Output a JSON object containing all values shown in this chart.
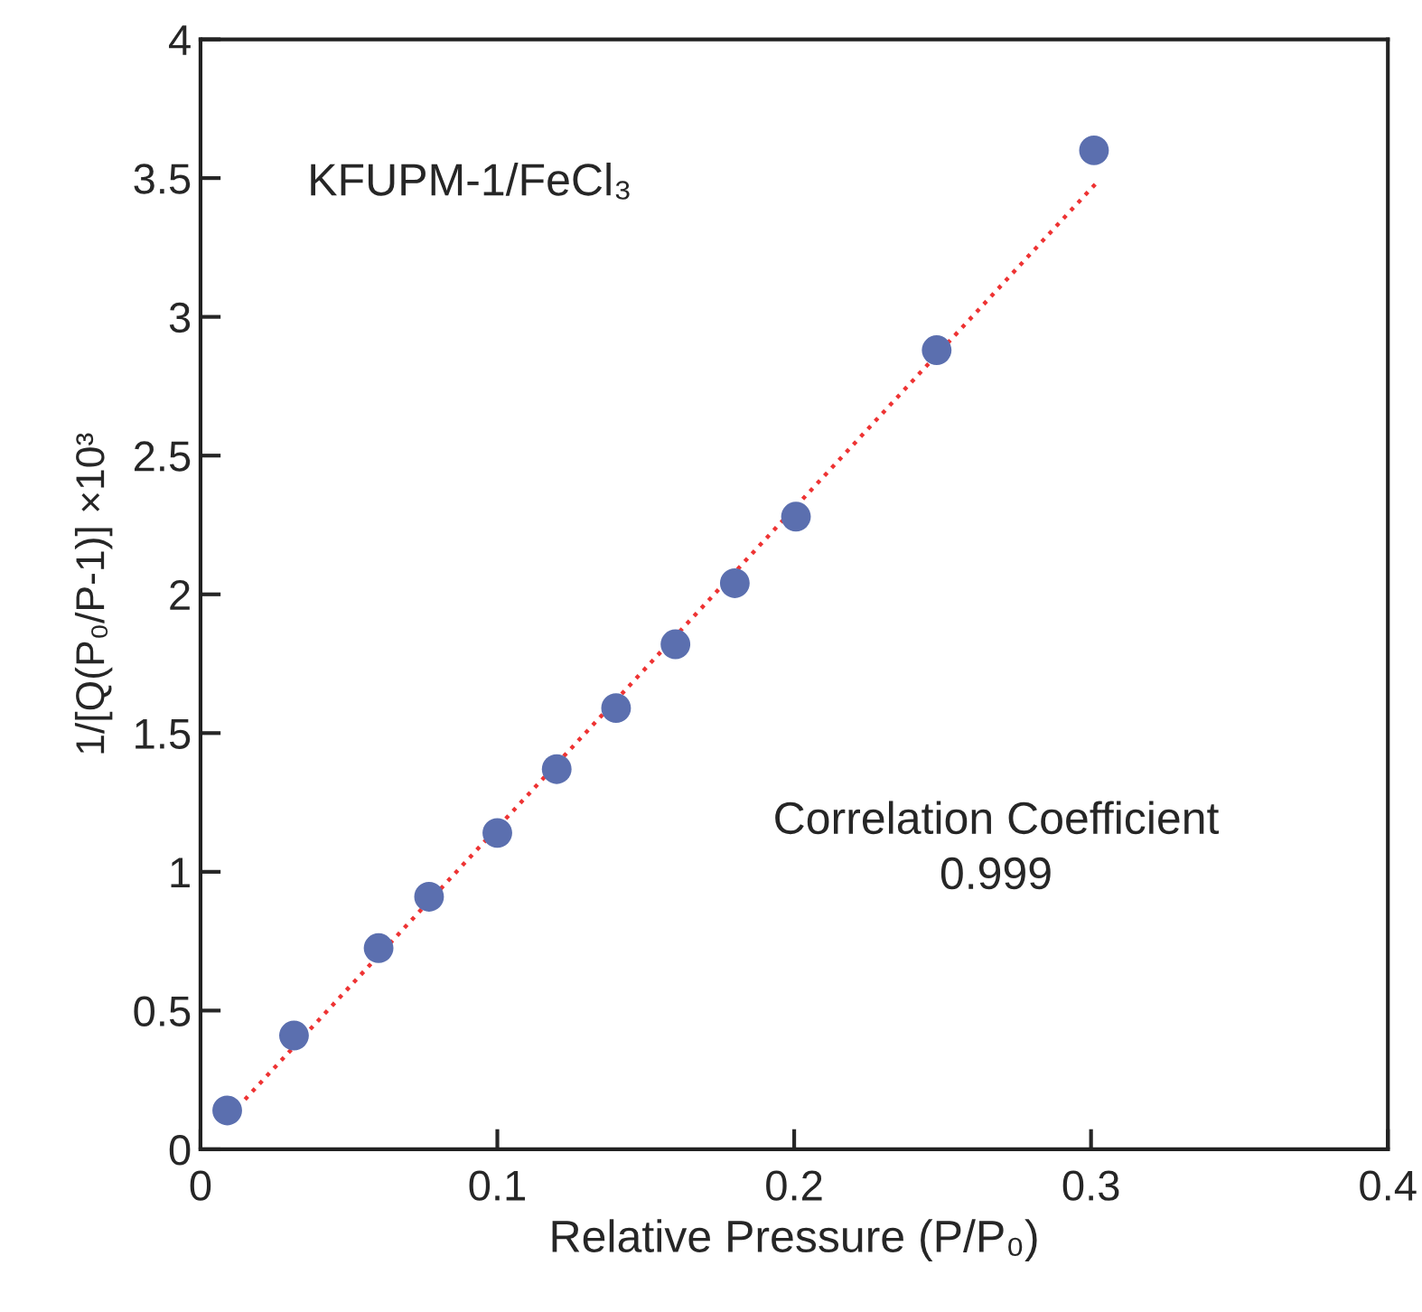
{
  "chart_data": {
    "type": "scatter",
    "xlabel": "Relative Pressure (P/P₀)",
    "ylabel": "1/[Q(P₀/P-1)] ×10³",
    "annotations": [
      "KFUPM-1/FeCl₃",
      "Correlation Coefficient\n0.999"
    ],
    "series": [
      {
        "color": "#5b6faf",
        "marker": "circle",
        "x": [
          0.009,
          0.0315,
          0.06,
          0.077,
          0.1,
          0.12,
          0.14,
          0.16,
          0.18,
          0.2006,
          0.248,
          0.301
        ],
        "values": [
          0.14,
          0.41,
          0.725,
          0.91,
          1.14,
          1.37,
          1.59,
          1.82,
          2.04,
          2.28,
          2.88,
          3.6
        ]
      },
      {
        "type": "line",
        "color": "#ee3333",
        "line_style": "dotted",
        "x": [
          0.015,
          0.3016
        ],
        "values": [
          0.18,
          3.48
        ]
      }
    ],
    "xlim": [
      0,
      0.4
    ],
    "ylim": [
      0,
      4
    ],
    "xticks": [
      0,
      0.1,
      0.2,
      0.3,
      0.4
    ],
    "yticks": [
      0,
      0.5,
      1,
      1.5,
      2,
      2.5,
      3,
      3.5,
      4
    ],
    "grid": false,
    "legend": false
  }
}
